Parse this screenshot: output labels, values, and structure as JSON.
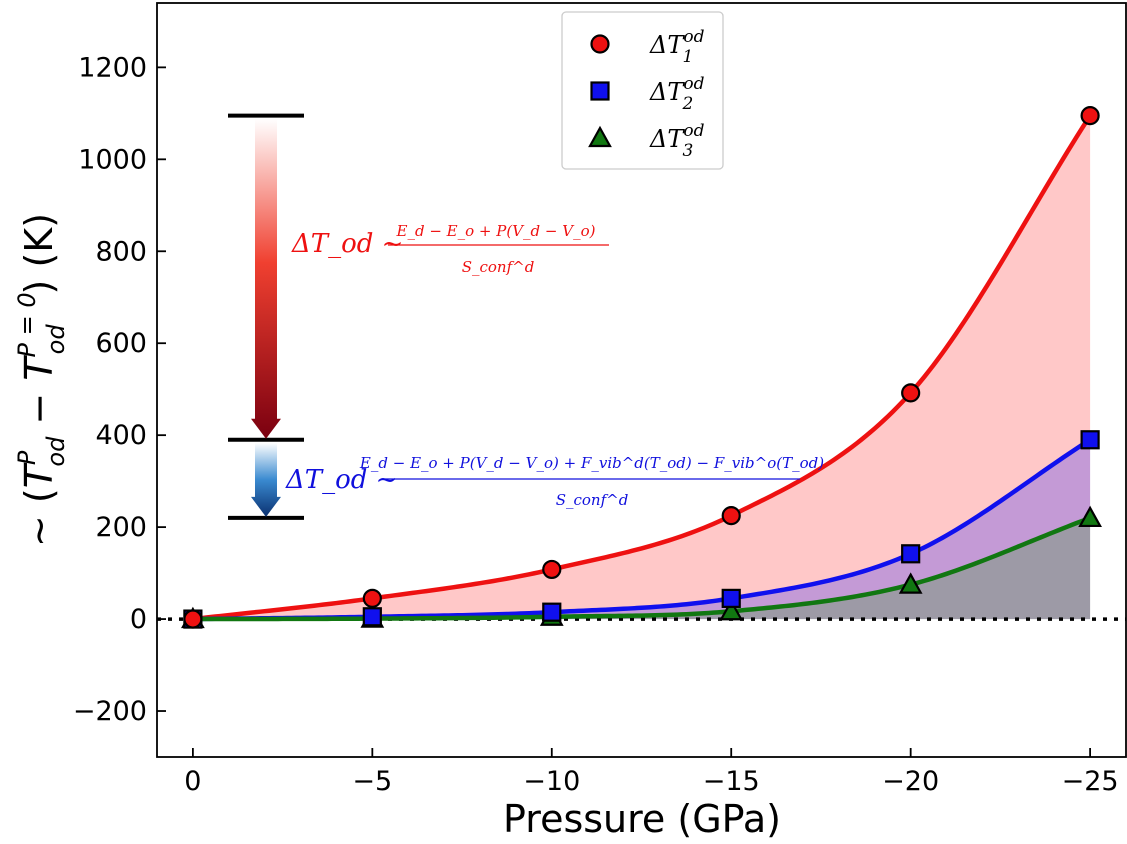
{
  "chart_data": {
    "type": "line",
    "xlabel": "Pressure (GPa)",
    "ylabel": "~ (T_od^P − T_od^{P=0}) (K)",
    "ylabel_parts": {
      "prefix": "~ (",
      "t1_base": "T",
      "t1_sub": "od",
      "t1_sup": "P",
      "minus": " − ",
      "t2_base": "T",
      "t2_sub": "od",
      "t2_sup": "P = 0",
      "suffix": ") (K)"
    },
    "xlim": [
      1,
      -26
    ],
    "ylim": [
      -300,
      1340
    ],
    "x_axis_reversed": true,
    "x_ticks": [
      0,
      -5,
      -10,
      -15,
      -20,
      -25
    ],
    "x_tick_labels": [
      "0",
      "−5",
      "−10",
      "−15",
      "−20",
      "−25"
    ],
    "y_ticks": [
      -200,
      0,
      200,
      400,
      600,
      800,
      1000,
      1200
    ],
    "y_tick_labels": [
      "−200",
      "0",
      "200",
      "400",
      "600",
      "800",
      "1000",
      "1200"
    ],
    "grid": false,
    "legend_position": "top-center",
    "zero_line": "dotted",
    "x": [
      0,
      -5,
      -10,
      -15,
      -20,
      -25
    ],
    "series": [
      {
        "name": "ΔT_1^od",
        "legend_base": "ΔT",
        "legend_sub": "1",
        "legend_sup": "od",
        "marker": "circle",
        "color": "#ee1111",
        "fill": "#ffc8c8",
        "values": [
          0,
          45,
          108,
          225,
          492,
          1095
        ]
      },
      {
        "name": "ΔT_2^od",
        "legend_base": "ΔT",
        "legend_sub": "2",
        "legend_sup": "od",
        "marker": "square",
        "color": "#1010ee",
        "fill": "#c49ad6",
        "values": [
          0,
          5,
          15,
          45,
          142,
          390
        ]
      },
      {
        "name": "ΔT_3^od",
        "legend_base": "ΔT",
        "legend_sub": "3",
        "legend_sup": "od",
        "marker": "triangle",
        "color": "#117711",
        "fill": "#9d9aa6",
        "values": [
          0,
          1,
          5,
          17,
          75,
          220
        ]
      }
    ],
    "bracket_levels": [
      1095,
      390,
      220
    ],
    "annotations": [
      {
        "color": "#ee1111",
        "lhs": "ΔT_od ~",
        "numerator": "E_d − E_o + P(V_d − V_o)",
        "denominator": "S_conf^d"
      },
      {
        "color": "#1010dd",
        "lhs": "ΔT_od ~",
        "numerator": "E_d − E_o + P(V_d − V_o) + F_vib^d(T_od) − F_vib^o(T_od)",
        "denominator": "S_conf^d"
      }
    ]
  }
}
